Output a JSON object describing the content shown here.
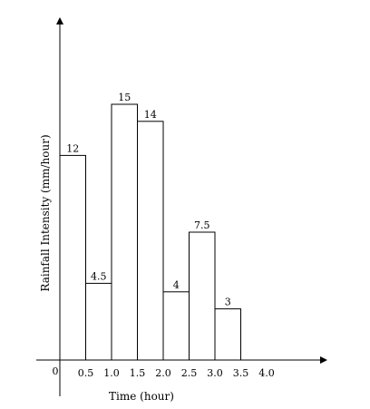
{
  "chart_data": {
    "type": "bar",
    "title": "",
    "xlabel": "Time (hour)",
    "ylabel": "Rainfall Intensity (mm/hour)",
    "origin_label": "0",
    "x_ticks": [
      "0.5",
      "1.0",
      "1.5",
      "2.0",
      "2.5",
      "3.0",
      "3.5",
      "4.0"
    ],
    "bins": [
      {
        "x0": 0.0,
        "x1": 0.5,
        "value": 12,
        "label": "12"
      },
      {
        "x0": 0.5,
        "x1": 1.0,
        "value": 4.5,
        "label": "4.5"
      },
      {
        "x0": 1.0,
        "x1": 1.5,
        "value": 15,
        "label": "15"
      },
      {
        "x0": 1.5,
        "x1": 2.0,
        "value": 14,
        "label": "14"
      },
      {
        "x0": 2.0,
        "x1": 2.5,
        "value": 4,
        "label": "4"
      },
      {
        "x0": 2.5,
        "x1": 3.0,
        "value": 7.5,
        "label": "7.5"
      },
      {
        "x0": 3.0,
        "x1": 3.5,
        "value": 3,
        "label": "3"
      }
    ],
    "xlim": [
      0,
      5.1
    ],
    "ylim": [
      0,
      18.8
    ],
    "grid": false,
    "legend": "none"
  }
}
